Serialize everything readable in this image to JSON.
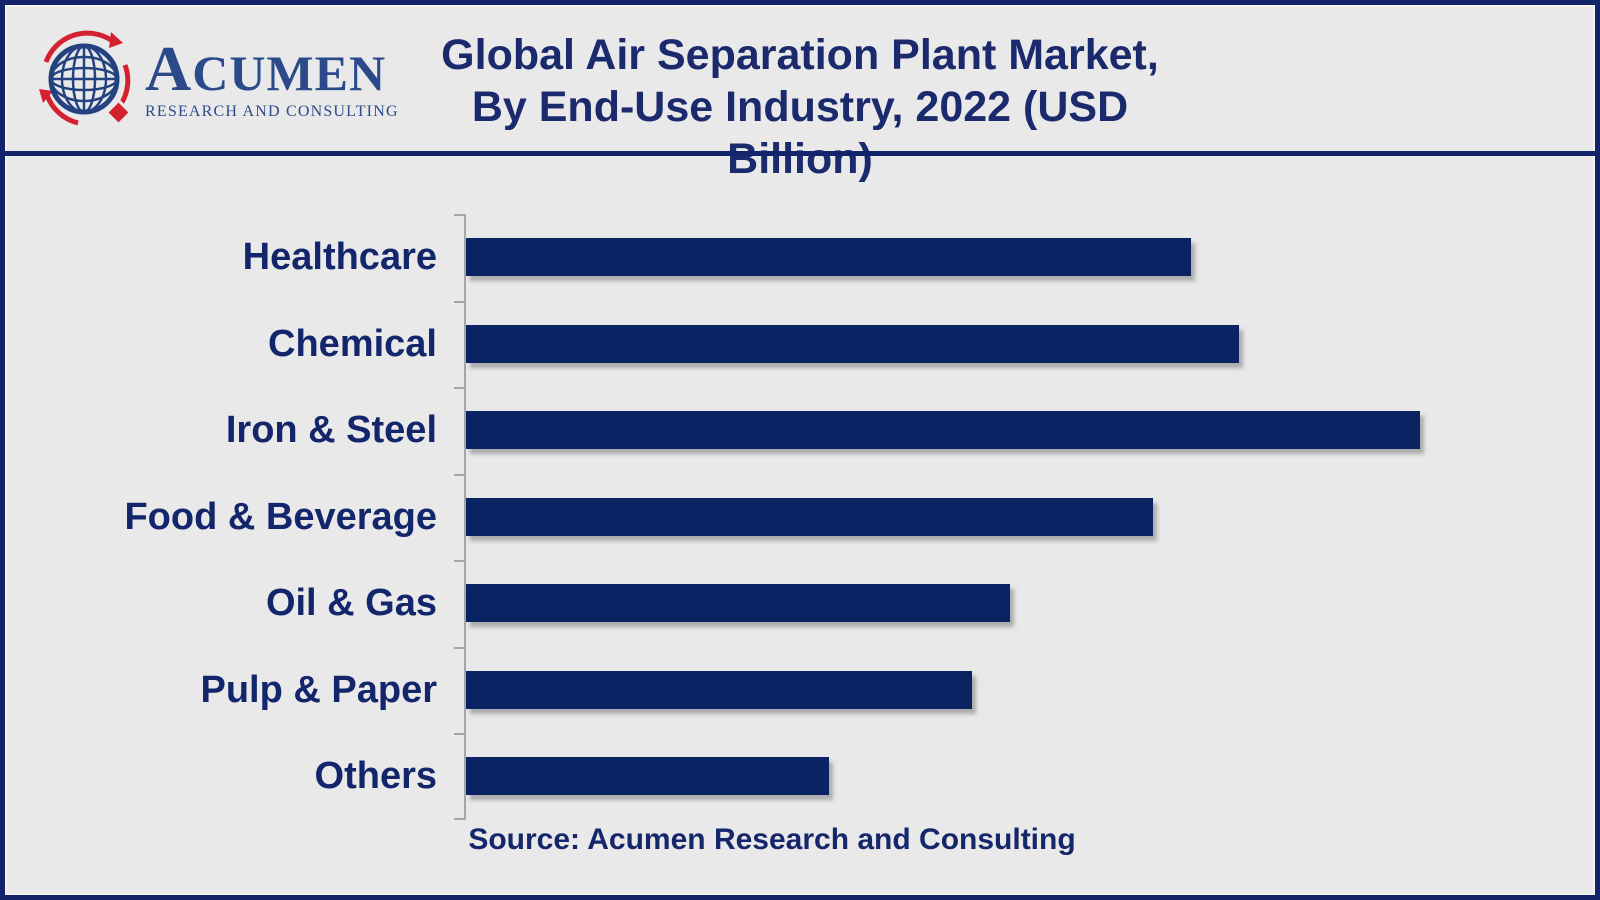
{
  "logo": {
    "name_initial": "A",
    "name_rest": "CUMEN",
    "subtitle": "RESEARCH AND CONSULTING",
    "icon": "globe-with-red-orbit-arrows-and-diamond"
  },
  "title": {
    "line1": "Global Air Separation Plant Market,",
    "line2": "By End-Use Industry, 2022 (USD Billion)"
  },
  "source": "Source: Acumen Research and Consulting",
  "colors": {
    "background": "#e9e9ea",
    "frame_border": "#14246b",
    "bar": "#0a2363",
    "title_text": "#1b2a6c",
    "label_text": "#13256b",
    "logo_blue": "#2a4a8a",
    "logo_red": "#d52030",
    "axis_gray": "#a5a6a8"
  },
  "chart_data": {
    "type": "bar",
    "orientation": "horizontal",
    "title": "Global Air Separation Plant Market, By End-Use Industry, 2022 (USD Billion)",
    "unit": "USD Billion",
    "categories": [
      "Healthcare",
      "Chemical",
      "Iron & Steel",
      "Food & Beverage",
      "Oil & Gas",
      "Pulp & Paper",
      "Others"
    ],
    "values_pct_of_longest_bar": [
      76,
      81,
      100,
      72,
      57,
      53,
      38
    ],
    "value_note": "No numeric value axis or data labels are shown in the figure; values are bar lengths measured relative to the longest bar (Iron & Steel = 100).",
    "bar_color": "#0a2363",
    "grid": false,
    "legend": false,
    "value_axis_labels_shown": false,
    "source": "Source: Acumen Research and Consulting"
  }
}
